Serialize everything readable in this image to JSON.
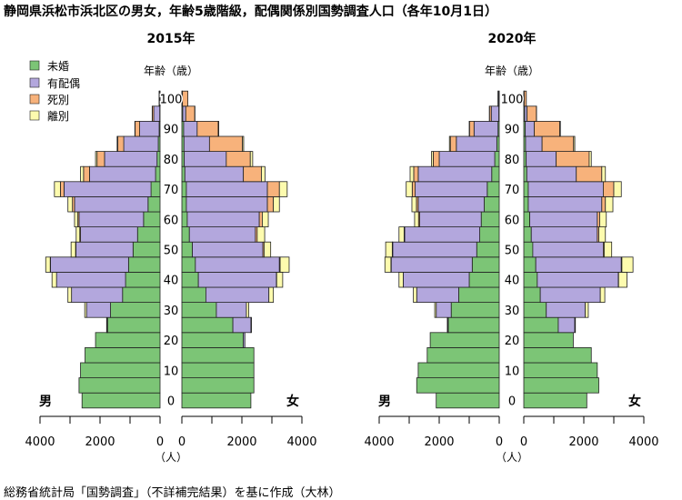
{
  "title": "静岡県浜松市浜北区の男女，年齢5歳階級，配偶関係別国勢調査人口（各年10月1日）",
  "source": "総務省統計局「国勢調査」（不詳補完結果）を基に作成（大林）",
  "colors": {
    "unmarried": "#7cc576",
    "married": "#b3a7dd",
    "widowed": "#f7b27b",
    "divorced": "#fdfbae",
    "stroke": "#222222"
  },
  "chart_data": [
    {
      "type": "population-pyramid (stacked bar)",
      "title": "2015年",
      "age_axis_label": "年齢（歳）",
      "x_unit_label": "（人）",
      "male_label": "男",
      "female_label": "女",
      "x_ticks": [
        4000,
        2000,
        0
      ],
      "xlim": [
        0,
        4000
      ],
      "age_groups": [
        "0",
        "5",
        "10",
        "15",
        "20",
        "25",
        "30",
        "35",
        "40",
        "45",
        "50",
        "55",
        "60",
        "65",
        "70",
        "75",
        "80",
        "85",
        "90",
        "95",
        "100"
      ],
      "legend": [
        "未婚",
        "有配偶",
        "死別",
        "離別"
      ],
      "male": {
        "unmarried": [
          2600,
          2700,
          2650,
          2500,
          2150,
          1750,
          1650,
          1250,
          1150,
          1050,
          900,
          750,
          550,
          400,
          300,
          150,
          100,
          60,
          30,
          10,
          2
        ],
        "married": [
          0,
          0,
          0,
          0,
          0,
          20,
          800,
          1700,
          2300,
          2600,
          1900,
          1900,
          2150,
          2450,
          2900,
          2200,
          1750,
          1150,
          650,
          200,
          20
        ],
        "widowed": [
          0,
          0,
          0,
          0,
          0,
          0,
          0,
          0,
          0,
          10,
          15,
          25,
          40,
          70,
          120,
          200,
          250,
          200,
          150,
          50,
          10
        ],
        "divorced": [
          0,
          0,
          0,
          0,
          0,
          10,
          60,
          120,
          150,
          150,
          150,
          120,
          110,
          150,
          200,
          100,
          50,
          20,
          10,
          2,
          0
        ]
      },
      "female": {
        "unmarried": [
          2300,
          2400,
          2400,
          2400,
          2050,
          1700,
          1150,
          800,
          550,
          450,
          350,
          250,
          180,
          150,
          150,
          100,
          80,
          70,
          60,
          30,
          5
        ],
        "married": [
          0,
          0,
          0,
          0,
          50,
          600,
          1000,
          2100,
          2600,
          2800,
          2350,
          2200,
          2400,
          2700,
          2700,
          1950,
          1400,
          850,
          450,
          100,
          15
        ],
        "widowed": [
          0,
          0,
          0,
          0,
          0,
          0,
          0,
          0,
          10,
          25,
          40,
          60,
          100,
          200,
          400,
          600,
          800,
          1100,
          700,
          300,
          180
        ],
        "divorced": [
          0,
          0,
          0,
          0,
          0,
          20,
          80,
          150,
          200,
          300,
          220,
          250,
          200,
          200,
          260,
          120,
          80,
          40,
          20,
          5,
          0
        ]
      }
    },
    {
      "type": "population-pyramid (stacked bar)",
      "title": "2020年",
      "age_axis_label": "年齢（歳）",
      "x_unit_label": "（人）",
      "male_label": "男",
      "female_label": "女",
      "x_ticks": [
        4000,
        2000,
        0
      ],
      "xlim": [
        0,
        4000
      ],
      "age_groups": [
        "0",
        "5",
        "10",
        "15",
        "20",
        "25",
        "30",
        "35",
        "40",
        "45",
        "50",
        "55",
        "60",
        "65",
        "70",
        "75",
        "80",
        "85",
        "90",
        "95",
        "100"
      ],
      "legend": [
        "未婚",
        "有配偶",
        "死別",
        "離別"
      ],
      "male": {
        "unmarried": [
          2100,
          2750,
          2700,
          2400,
          2300,
          1700,
          1600,
          1350,
          1000,
          900,
          750,
          650,
          600,
          500,
          400,
          250,
          150,
          80,
          40,
          15,
          3
        ],
        "married": [
          0,
          0,
          0,
          0,
          0,
          20,
          500,
          1400,
          2200,
          2700,
          2800,
          2500,
          2050,
          2200,
          2400,
          2450,
          1850,
          1350,
          800,
          250,
          30
        ],
        "widowed": [
          0,
          0,
          0,
          0,
          0,
          0,
          0,
          0,
          0,
          10,
          15,
          20,
          40,
          60,
          100,
          150,
          200,
          200,
          150,
          60,
          10
        ],
        "divorced": [
          0,
          0,
          0,
          0,
          0,
          10,
          50,
          110,
          140,
          200,
          220,
          170,
          130,
          150,
          200,
          120,
          60,
          30,
          10,
          3,
          0
        ]
      },
      "female": {
        "unmarried": [
          2100,
          2500,
          2450,
          2250,
          1650,
          1150,
          750,
          550,
          450,
          400,
          300,
          250,
          200,
          150,
          150,
          100,
          80,
          60,
          50,
          30,
          5
        ],
        "married": [
          0,
          0,
          0,
          0,
          0,
          550,
          1300,
          2000,
          2700,
          2850,
          2350,
          2200,
          2250,
          2450,
          2500,
          1650,
          1000,
          550,
          300,
          80,
          10
        ],
        "widowed": [
          0,
          0,
          0,
          0,
          0,
          0,
          0,
          0,
          10,
          20,
          30,
          50,
          80,
          120,
          350,
          850,
          1100,
          1050,
          850,
          310,
          70
        ],
        "divorced": [
          0,
          0,
          0,
          0,
          0,
          20,
          100,
          150,
          280,
          370,
          250,
          220,
          220,
          250,
          250,
          120,
          70,
          40,
          20,
          5,
          0
        ]
      }
    }
  ]
}
